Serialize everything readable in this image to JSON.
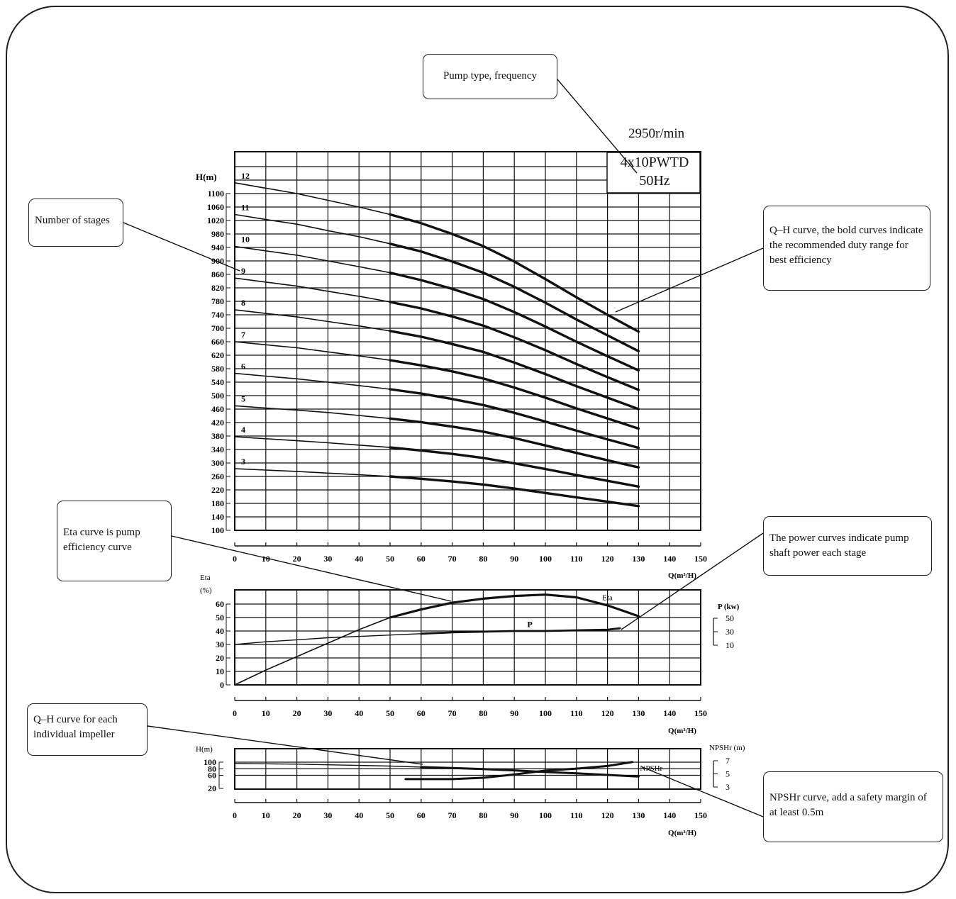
{
  "header": {
    "speed": "2950r/min",
    "model": "4x10PWTD",
    "frequency": "50Hz"
  },
  "callouts": {
    "pump_type": "Pump type, frequency",
    "stages": "Number of stages",
    "qh_bold": "Q–H curve, the bold curves indicate the recommended duty range for best efficiency",
    "eta": "Eta curve is pump efficiency curve",
    "power": "The power curves indicate pump shaft power each stage",
    "qh_impeller": "Q–H curve for each individual impeller",
    "npshr": "NPSHr curve, add a safety margin of at least 0.5m"
  },
  "chart_data": [
    {
      "type": "line",
      "ylabel": "H(m)",
      "xlabel": "Q(m³/H)",
      "xlim": [
        0,
        150
      ],
      "ylim": [
        100,
        1100
      ],
      "x_ticks": [
        0,
        10,
        20,
        30,
        40,
        50,
        60,
        70,
        80,
        90,
        100,
        110,
        120,
        130,
        140,
        150
      ],
      "y_ticks": [
        100,
        140,
        180,
        220,
        260,
        300,
        340,
        380,
        420,
        460,
        500,
        540,
        580,
        620,
        660,
        700,
        740,
        780,
        820,
        860,
        900,
        940,
        980,
        1020,
        1060,
        1100
      ],
      "recommended_range": [
        55,
        130
      ],
      "x": [
        0,
        10,
        20,
        30,
        40,
        50,
        60,
        70,
        80,
        90,
        100,
        110,
        120,
        130
      ],
      "series": [
        {
          "name": "3",
          "values": [
            283,
            279,
            275,
            270,
            265,
            260,
            253,
            245,
            236,
            224,
            211,
            198,
            185,
            172
          ]
        },
        {
          "name": "4",
          "values": [
            378,
            372,
            366,
            360,
            353,
            346,
            337,
            327,
            315,
            299,
            282,
            264,
            247,
            230
          ]
        },
        {
          "name": "5",
          "values": [
            470,
            463,
            457,
            450,
            441,
            432,
            421,
            408,
            393,
            374,
            352,
            330,
            308,
            287
          ]
        },
        {
          "name": "6",
          "values": [
            566,
            558,
            550,
            540,
            530,
            519,
            506,
            490,
            472,
            449,
            423,
            396,
            370,
            345
          ]
        },
        {
          "name": "7",
          "values": [
            660,
            651,
            642,
            630,
            618,
            605,
            590,
            572,
            551,
            524,
            494,
            462,
            432,
            402
          ]
        },
        {
          "name": "8",
          "values": [
            755,
            744,
            734,
            720,
            707,
            692,
            675,
            653,
            630,
            598,
            564,
            528,
            494,
            460
          ]
        },
        {
          "name": "9",
          "values": [
            849,
            837,
            825,
            810,
            795,
            778,
            759,
            735,
            708,
            673,
            635,
            594,
            555,
            517
          ]
        },
        {
          "name": "10",
          "values": [
            943,
            930,
            917,
            900,
            883,
            865,
            843,
            817,
            787,
            748,
            705,
            660,
            617,
            575
          ]
        },
        {
          "name": "11",
          "values": [
            1038,
            1023,
            1009,
            990,
            972,
            951,
            928,
            898,
            865,
            823,
            776,
            726,
            679,
            632
          ]
        },
        {
          "name": "12",
          "values": [
            1132,
            1116,
            1100,
            1080,
            1060,
            1038,
            1012,
            980,
            944,
            898,
            846,
            792,
            740,
            690
          ]
        }
      ]
    },
    {
      "type": "line",
      "ylabel": "Eta",
      "yunit": "(%)",
      "xlabel": "Q(m³/H)",
      "y2label": "P (kw)",
      "xlim": [
        0,
        150
      ],
      "ylim": [
        0,
        60
      ],
      "x_ticks": [
        0,
        10,
        20,
        30,
        40,
        50,
        60,
        70,
        80,
        90,
        100,
        110,
        120,
        130,
        140,
        150
      ],
      "y_ticks": [
        0,
        10,
        20,
        30,
        40,
        50,
        60
      ],
      "y2_ticks": [
        10,
        30,
        50
      ],
      "series": [
        {
          "name": "Eta",
          "x": [
            0,
            10,
            20,
            30,
            40,
            50,
            60,
            70,
            80,
            90,
            100,
            110,
            120,
            130
          ],
          "values": [
            0,
            11,
            21,
            31,
            41,
            50,
            56,
            61,
            64,
            66,
            67,
            65,
            59,
            51
          ]
        },
        {
          "name": "P",
          "x": [
            0,
            10,
            20,
            30,
            40,
            50,
            60,
            70,
            80,
            90,
            100,
            110,
            120,
            124
          ],
          "values": [
            30,
            32,
            33.5,
            35,
            36,
            37,
            38,
            39,
            39.5,
            40,
            40,
            40.5,
            41,
            42
          ]
        }
      ]
    },
    {
      "type": "line",
      "ylabel": "H(m)",
      "xlabel": "Q(m³/H)",
      "y2label": "NPSHr (m)",
      "xlim": [
        0,
        150
      ],
      "ylim": [
        20,
        100
      ],
      "x_ticks": [
        0,
        10,
        20,
        30,
        40,
        50,
        60,
        70,
        80,
        90,
        100,
        110,
        120,
        130,
        140,
        150
      ],
      "y_ticks": [
        20,
        60,
        80,
        100
      ],
      "y2_ticks": [
        3,
        5,
        7
      ],
      "series": [
        {
          "name": "H",
          "x": [
            0,
            10,
            20,
            30,
            40,
            50,
            60,
            70,
            80,
            90,
            100,
            110,
            120,
            130
          ],
          "values": [
            96,
            95,
            94,
            92,
            90,
            88,
            85,
            82,
            79,
            75,
            70,
            66,
            61,
            56
          ]
        },
        {
          "name": "NPSHr",
          "x": [
            55,
            60,
            70,
            80,
            90,
            100,
            110,
            120,
            128
          ],
          "values": [
            4.2,
            4.2,
            4.2,
            4.4,
            4.9,
            5.5,
            5.8,
            6.2,
            6.8
          ]
        }
      ]
    }
  ]
}
